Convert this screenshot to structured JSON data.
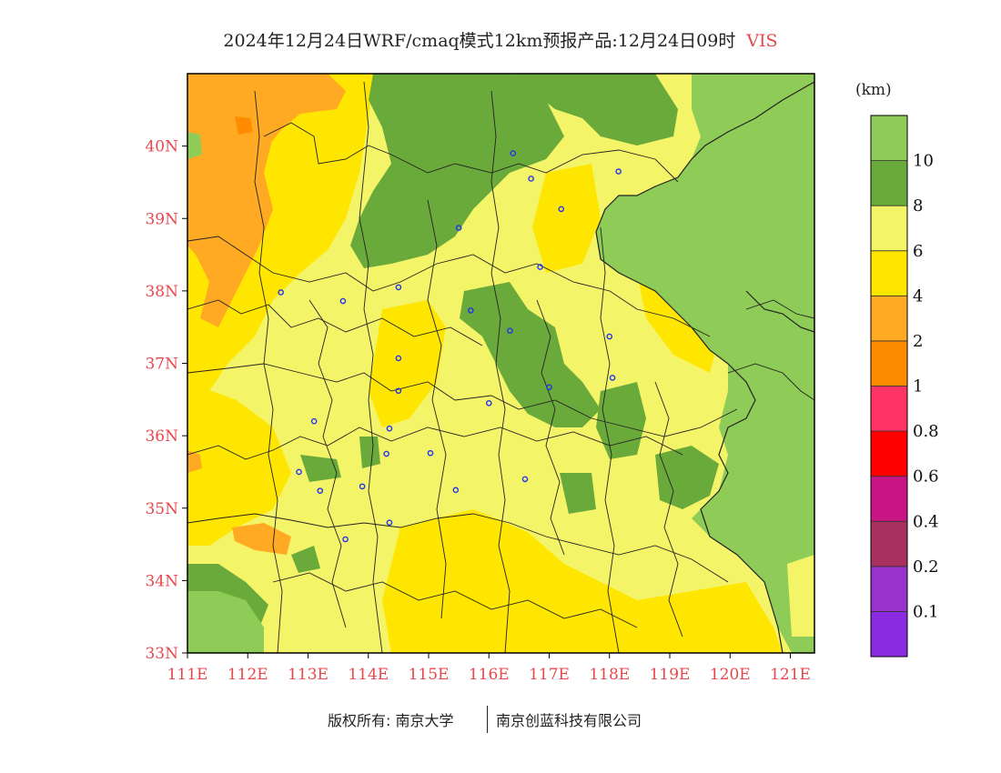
{
  "title": {
    "text": "2024年12月24日WRF/cmaq模式12km预报产品:12月24日09时",
    "variable": "VIS"
  },
  "colorbar": {
    "unit": "(km)",
    "bins": [
      {
        "color": "#8a2be2"
      },
      {
        "color": "#9932cc"
      },
      {
        "color": "#a8305e"
      },
      {
        "color": "#c71585"
      },
      {
        "color": "#ff0000"
      },
      {
        "color": "#ff3366"
      },
      {
        "color": "#ff8c00"
      },
      {
        "color": "#ffaa22"
      },
      {
        "color": "#ffe600"
      },
      {
        "color": "#f4f468"
      },
      {
        "color": "#6aaa3a"
      },
      {
        "color": "#8ecc57"
      }
    ],
    "labels": [
      "0.1",
      "0.2",
      "0.4",
      "0.6",
      "0.8",
      "1",
      "2",
      "4",
      "6",
      "8",
      "10"
    ]
  },
  "map": {
    "lon_range": [
      111,
      121.4
    ],
    "lat_range": [
      33,
      41
    ],
    "lon_ticks": [
      {
        "value": 111,
        "label": "111E"
      },
      {
        "value": 112,
        "label": "112E"
      },
      {
        "value": 113,
        "label": "113E"
      },
      {
        "value": 114,
        "label": "114E"
      },
      {
        "value": 115,
        "label": "115E"
      },
      {
        "value": 116,
        "label": "116E"
      },
      {
        "value": 117,
        "label": "117E"
      },
      {
        "value": 118,
        "label": "118E"
      },
      {
        "value": 119,
        "label": "119E"
      },
      {
        "value": 120,
        "label": "120E"
      },
      {
        "value": 121,
        "label": "121E"
      }
    ],
    "lat_ticks": [
      {
        "value": 33,
        "label": "33N"
      },
      {
        "value": 34,
        "label": "34N"
      },
      {
        "value": 35,
        "label": "35N"
      },
      {
        "value": 36,
        "label": "36N"
      },
      {
        "value": 37,
        "label": "37N"
      },
      {
        "value": 38,
        "label": "38N"
      },
      {
        "value": 39,
        "label": "39N"
      },
      {
        "value": 40,
        "label": "40N"
      }
    ],
    "tick_color": "#e8474c",
    "cities": [
      {
        "lon": 116.4,
        "lat": 39.9
      },
      {
        "lon": 116.7,
        "lat": 39.55
      },
      {
        "lon": 118.15,
        "lat": 39.65
      },
      {
        "lon": 117.2,
        "lat": 39.13
      },
      {
        "lon": 115.5,
        "lat": 38.87
      },
      {
        "lon": 116.85,
        "lat": 38.33
      },
      {
        "lon": 112.55,
        "lat": 37.98
      },
      {
        "lon": 113.58,
        "lat": 37.86
      },
      {
        "lon": 114.5,
        "lat": 38.05
      },
      {
        "lon": 115.7,
        "lat": 37.73
      },
      {
        "lon": 116.35,
        "lat": 37.45
      },
      {
        "lon": 118.0,
        "lat": 37.37
      },
      {
        "lon": 114.5,
        "lat": 37.07
      },
      {
        "lon": 114.5,
        "lat": 36.62
      },
      {
        "lon": 116.0,
        "lat": 36.45
      },
      {
        "lon": 117.0,
        "lat": 36.67
      },
      {
        "lon": 118.05,
        "lat": 36.8
      },
      {
        "lon": 113.1,
        "lat": 36.2
      },
      {
        "lon": 114.35,
        "lat": 36.1
      },
      {
        "lon": 114.3,
        "lat": 35.75
      },
      {
        "lon": 115.03,
        "lat": 35.76
      },
      {
        "lon": 112.85,
        "lat": 35.5
      },
      {
        "lon": 113.2,
        "lat": 35.24
      },
      {
        "lon": 113.9,
        "lat": 35.3
      },
      {
        "lon": 115.45,
        "lat": 35.25
      },
      {
        "lon": 116.6,
        "lat": 35.4
      },
      {
        "lon": 114.35,
        "lat": 34.8
      },
      {
        "lon": 113.62,
        "lat": 34.57
      }
    ]
  },
  "footer": {
    "copyright": "版权所有: 南京大学",
    "company": "南京创蓝科技有限公司"
  }
}
